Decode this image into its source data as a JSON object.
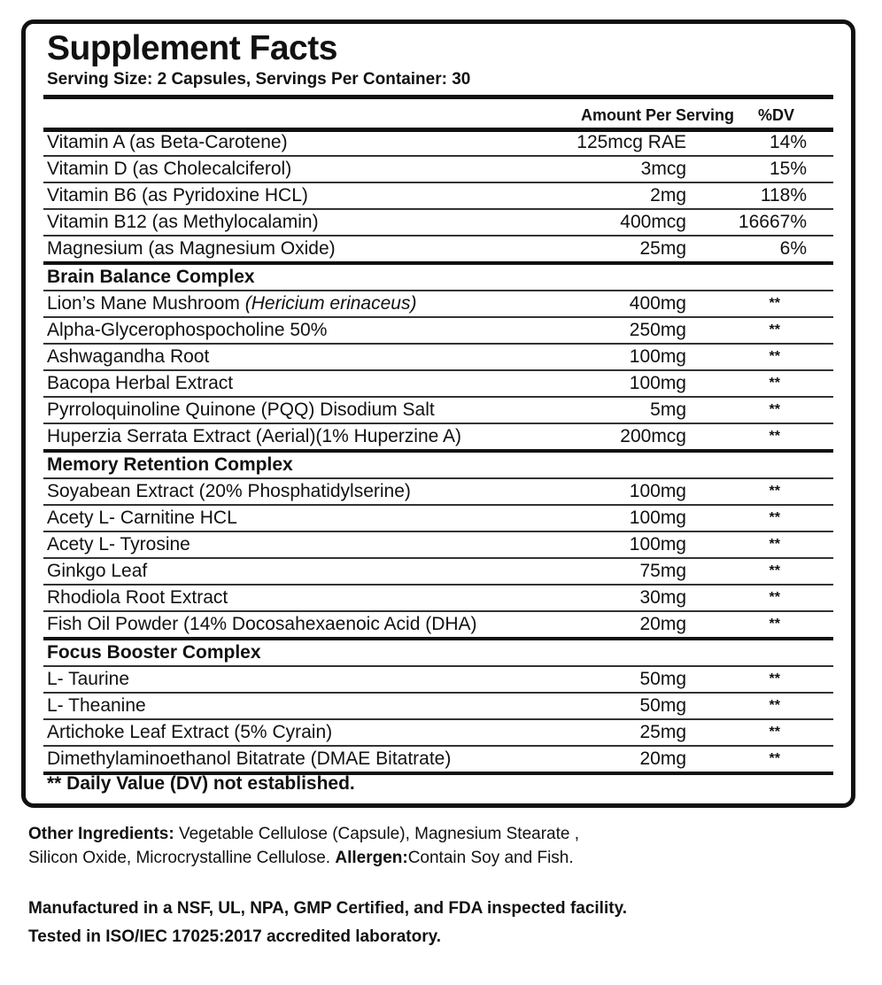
{
  "title": "Supplement Facts",
  "serving": "Serving Size: 2 Capsules, Servings Per Container: 30",
  "header": {
    "amount": "Amount Per Serving",
    "dv": "%DV"
  },
  "vitamins": [
    {
      "name": "Vitamin A (as Beta-Carotene)",
      "amount": "125mcg RAE",
      "dv": "14%"
    },
    {
      "name": "Vitamin D (as Cholecalciferol)",
      "amount": "3mcg",
      "dv": "15%"
    },
    {
      "name": "Vitamin B6 (as Pyridoxine HCL)",
      "amount": "2mg",
      "dv": "118%"
    },
    {
      "name": "Vitamin B12 (as Methylocalamin)",
      "amount": "400mcg",
      "dv": "16667%"
    },
    {
      "name": "Magnesium (as Magnesium Oxide)",
      "amount": "25mg",
      "dv": "6%"
    }
  ],
  "sections": [
    {
      "title": "Brain Balance Complex",
      "items": [
        {
          "name": "Lion’s Mane Mushroom ",
          "italic": "(Hericium erinaceus)",
          "amount": "400mg",
          "dv": "**"
        },
        {
          "name": "Alpha-Glycerophospocholine 50%",
          "amount": "250mg",
          "dv": "**"
        },
        {
          "name": "Ashwagandha Root",
          "amount": "100mg",
          "dv": "**"
        },
        {
          "name": "Bacopa Herbal Extract",
          "amount": "100mg",
          "dv": "**"
        },
        {
          "name": "Pyrroloquinoline Quinone (PQQ) Disodium Salt",
          "amount": "5mg",
          "dv": "**"
        },
        {
          "name": "Huperzia Serrata Extract (Aerial)(1% Huperzine A)",
          "amount": "200mcg",
          "dv": "**"
        }
      ]
    },
    {
      "title": "Memory Retention Complex",
      "items": [
        {
          "name": "Soyabean Extract (20% Phosphatidylserine)",
          "amount": "100mg",
          "dv": "**"
        },
        {
          "name": "Acety L- Carnitine HCL",
          "amount": "100mg",
          "dv": "**"
        },
        {
          "name": "Acety L- Tyrosine",
          "amount": "100mg",
          "dv": "**"
        },
        {
          "name": "Ginkgo Leaf",
          "amount": "75mg",
          "dv": "**"
        },
        {
          "name": "Rhodiola Root Extract",
          "amount": "30mg",
          "dv": "**"
        },
        {
          "name": "Fish Oil Powder (14% Docosahexaenoic Acid (DHA)",
          "amount": "20mg",
          "dv": "**"
        }
      ]
    },
    {
      "title": "Focus Booster Complex",
      "items": [
        {
          "name": "L- Taurine",
          "amount": "50mg",
          "dv": "**"
        },
        {
          "name": "L- Theanine",
          "amount": "50mg",
          "dv": "**"
        },
        {
          "name": "Artichoke Leaf Extract (5% Cyrain)",
          "amount": "25mg",
          "dv": "**"
        },
        {
          "name": "Dimethylaminoethanol Bitatrate (DMAE Bitatrate)",
          "amount": "20mg",
          "dv": "**"
        }
      ]
    }
  ],
  "footnote": "** Daily Value (DV) not established.",
  "other": {
    "label": "Other Ingredients:",
    "text": " Vegetable Cellulose (Capsule), Magnesium Stearate ,",
    "line2": "Silicon Oxide, Microcrystalline Cellulose. ",
    "allergen_label": "Allergen:",
    "allergen": "Contain Soy and Fish."
  },
  "manufacture": [
    "Manufactured in a NSF, UL, NPA, GMP Certified, and FDA inspected facility.",
    "Tested in ISO/IEC 17025:2017 accredited laboratory."
  ]
}
